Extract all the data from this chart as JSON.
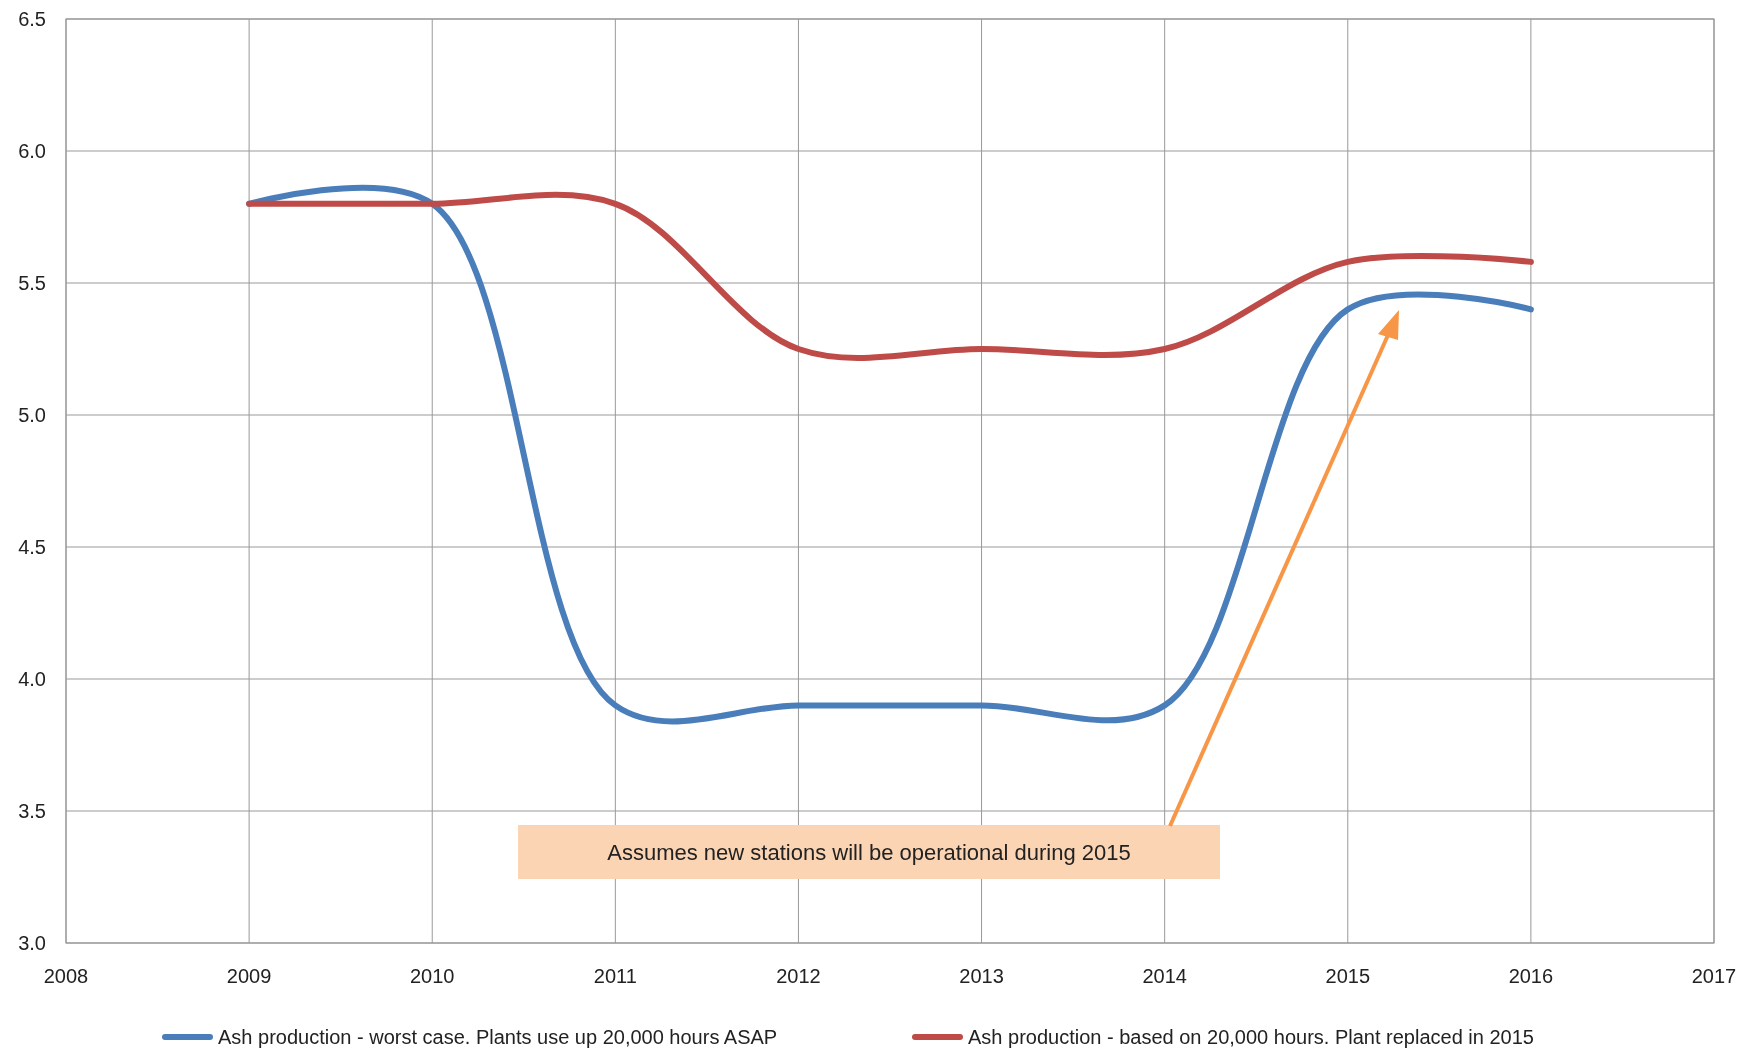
{
  "chart_data": {
    "type": "line",
    "x": [
      2009,
      2010,
      2011,
      2012,
      2013,
      2014,
      2015,
      2016
    ],
    "series": [
      {
        "name": "Ash production - worst case. Plants use up 20,000 hours ASAP",
        "color": "#4a7ebb",
        "values": [
          5.8,
          5.8,
          3.9,
          3.9,
          3.9,
          3.9,
          5.4,
          5.4
        ]
      },
      {
        "name": "Ash production - based on 20,000 hours. Plant replaced in 2015",
        "color": "#be4b48",
        "values": [
          5.8,
          5.8,
          5.8,
          5.25,
          5.25,
          5.25,
          5.58,
          5.58
        ]
      }
    ],
    "xlim": [
      2008,
      2017
    ],
    "xticks": [
      2008,
      2009,
      2010,
      2011,
      2012,
      2013,
      2014,
      2015,
      2016,
      2017
    ],
    "ylim": [
      3.0,
      6.5
    ],
    "yticks": [
      {
        "value": 3.0,
        "label": "3.0"
      },
      {
        "value": 3.5,
        "label": "3.5"
      },
      {
        "value": 4.0,
        "label": "4.0"
      },
      {
        "value": 4.5,
        "label": "4.5"
      },
      {
        "value": 5.0,
        "label": "5.0"
      },
      {
        "value": 5.5,
        "label": "5.5"
      },
      {
        "value": 6.0,
        "label": "6.0"
      },
      {
        "value": 6.5,
        "label": "6.5"
      }
    ],
    "grid": true,
    "legend": "bottom",
    "marker": "none",
    "annotations": [
      "Assumes new stations will be operational during 2015"
    ]
  }
}
